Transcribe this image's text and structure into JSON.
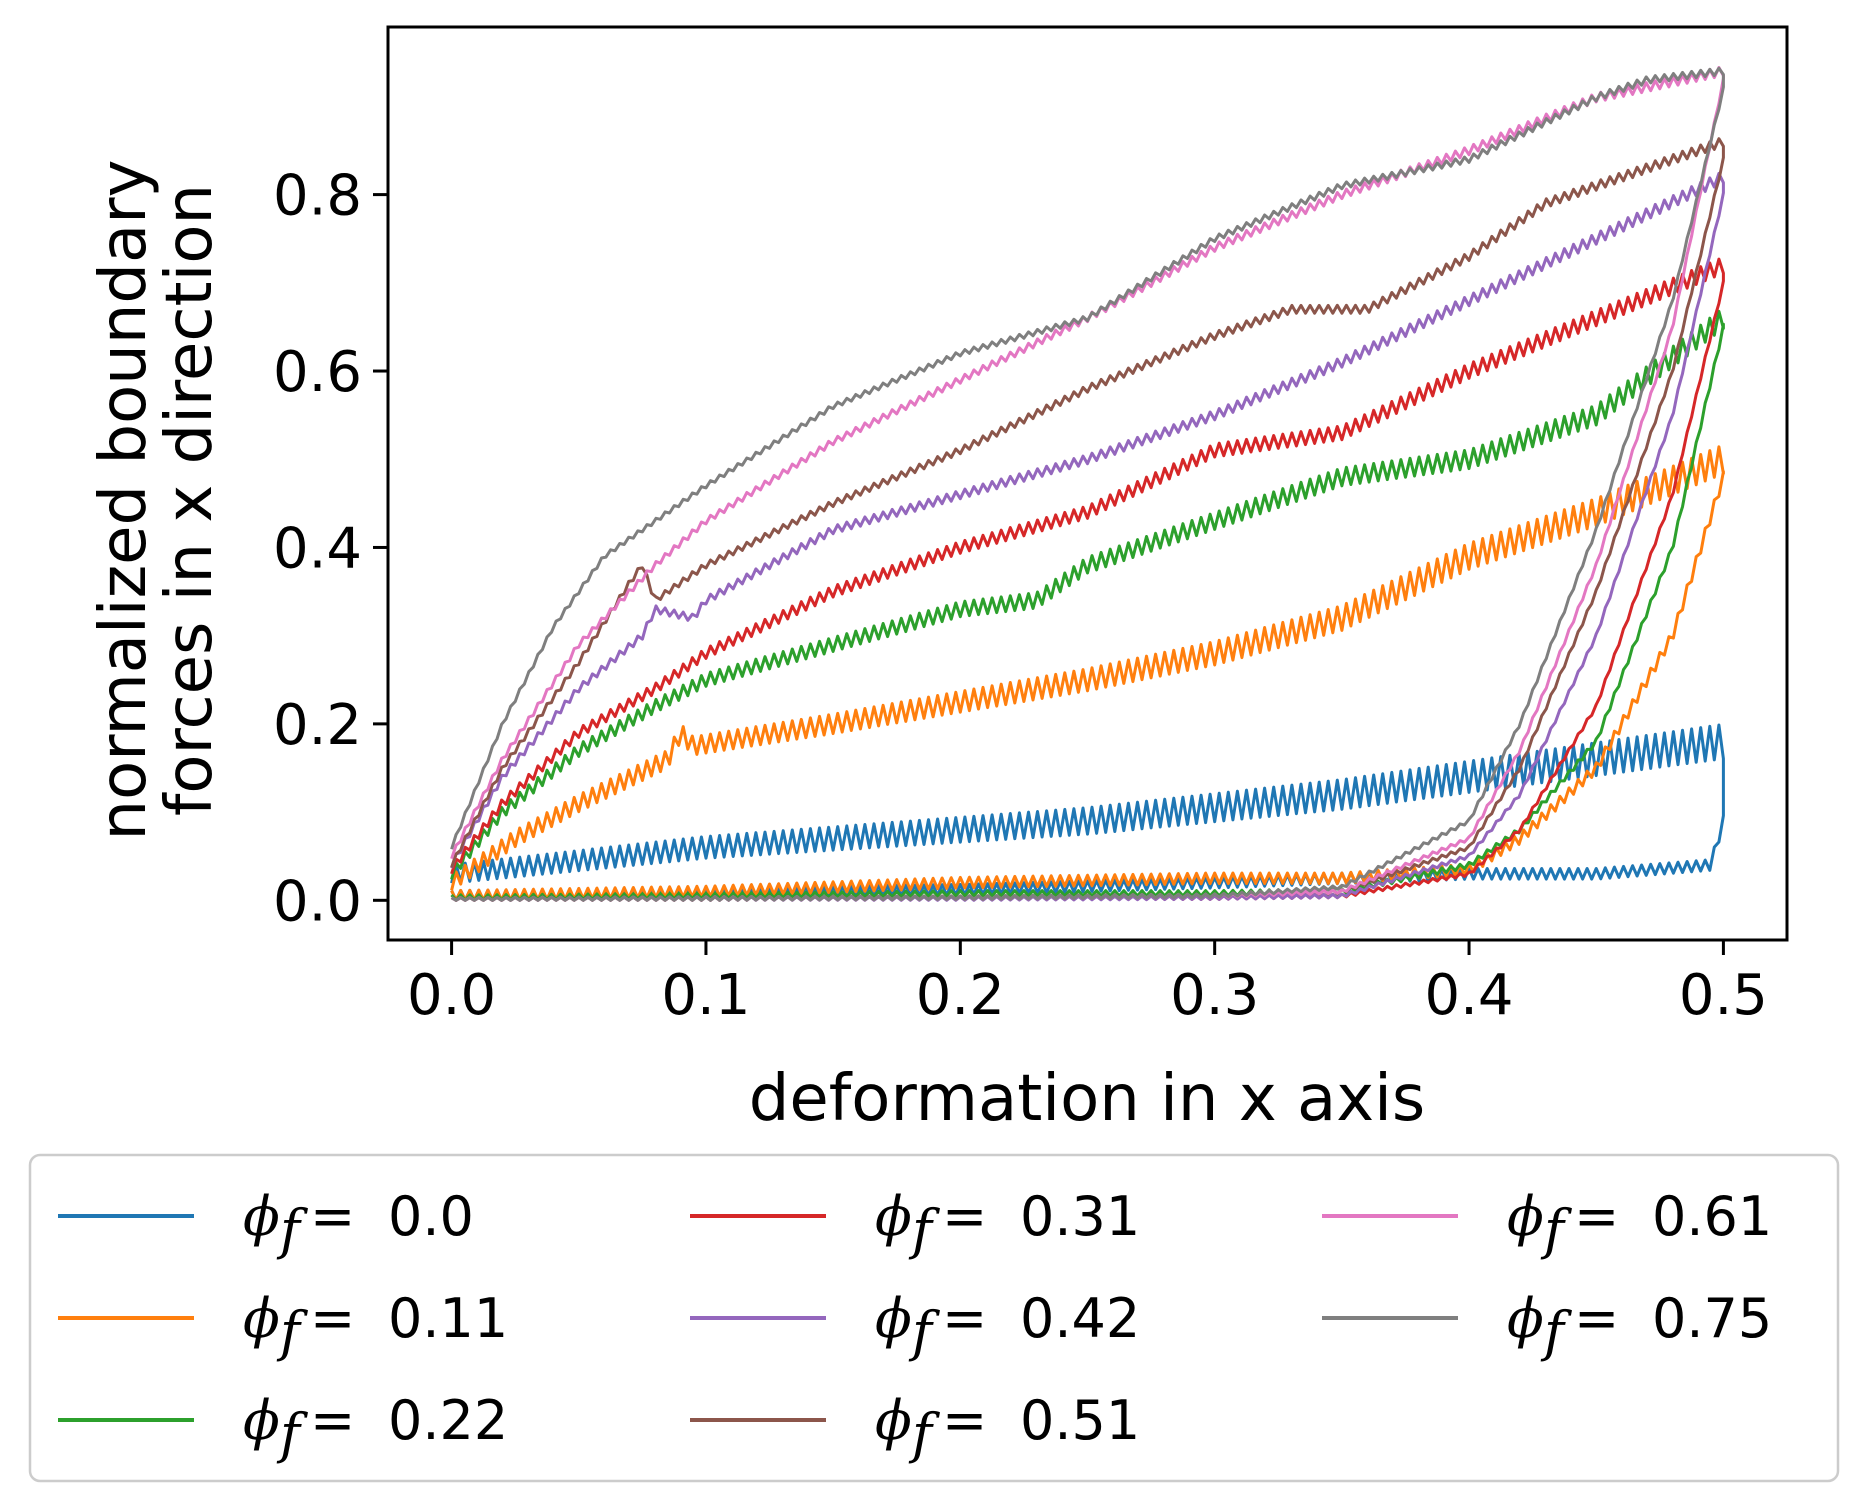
{
  "chart_data": {
    "type": "line",
    "title": "",
    "xlabel": "deformation in x axis",
    "ylabel_lines": [
      "normalized boundary",
      "forces in x direction"
    ],
    "xlim": [
      -0.025,
      0.525
    ],
    "ylim": [
      -0.045,
      0.99
    ],
    "xticks": [
      0.0,
      0.1,
      0.2,
      0.3,
      0.4,
      0.5
    ],
    "xtick_labels": [
      "0.0",
      "0.1",
      "0.2",
      "0.3",
      "0.4",
      "0.5"
    ],
    "yticks": [
      0.0,
      0.2,
      0.4,
      0.6,
      0.8
    ],
    "ytick_labels": [
      "0.0",
      "0.2",
      "0.4",
      "0.6",
      "0.8"
    ],
    "grid": false,
    "legend": {
      "placement": "below",
      "columns": 3,
      "symbol": "ϕ",
      "subscript": "f",
      "equals": "="
    },
    "series": [
      {
        "name": "0.0",
        "color": "#1f77b4",
        "loading": [
          [
            0,
            0.03
          ],
          [
            0.05,
            0.045
          ],
          [
            0.1,
            0.06
          ],
          [
            0.15,
            0.07
          ],
          [
            0.2,
            0.08
          ],
          [
            0.25,
            0.09
          ],
          [
            0.3,
            0.105
          ],
          [
            0.35,
            0.12
          ],
          [
            0.4,
            0.14
          ],
          [
            0.45,
            0.16
          ],
          [
            0.5,
            0.18
          ]
        ],
        "unloading": [
          [
            0.5,
            0.09
          ],
          [
            0.495,
            0.04
          ],
          [
            0.45,
            0.03
          ],
          [
            0.4,
            0.03
          ],
          [
            0.35,
            0.025
          ],
          [
            0.3,
            0.02
          ],
          [
            0.2,
            0.012
          ],
          [
            0.1,
            0.008
          ],
          [
            0,
            0.005
          ]
        ],
        "amp_load": 0.03,
        "amp_unload": 0.012
      },
      {
        "name": "0.11",
        "color": "#ff7f0e",
        "loading": [
          [
            0,
            0.02
          ],
          [
            0.025,
            0.07
          ],
          [
            0.05,
            0.11
          ],
          [
            0.085,
            0.16
          ],
          [
            0.09,
            0.19
          ],
          [
            0.095,
            0.175
          ],
          [
            0.15,
            0.2
          ],
          [
            0.2,
            0.225
          ],
          [
            0.25,
            0.25
          ],
          [
            0.3,
            0.28
          ],
          [
            0.35,
            0.32
          ],
          [
            0.4,
            0.39
          ],
          [
            0.45,
            0.44
          ],
          [
            0.5,
            0.5
          ]
        ],
        "unloading": [
          [
            0.5,
            0.48
          ],
          [
            0.48,
            0.3
          ],
          [
            0.45,
            0.15
          ],
          [
            0.42,
            0.07
          ],
          [
            0.4,
            0.035
          ],
          [
            0.35,
            0.025
          ],
          [
            0.3,
            0.025
          ],
          [
            0.2,
            0.02
          ],
          [
            0.1,
            0.01
          ],
          [
            0,
            0.005
          ]
        ],
        "amp_load": 0.025,
        "amp_unload": 0.012
      },
      {
        "name": "0.22",
        "color": "#2ca02c",
        "loading": [
          [
            0,
            0.03
          ],
          [
            0.02,
            0.1
          ],
          [
            0.05,
            0.17
          ],
          [
            0.08,
            0.22
          ],
          [
            0.1,
            0.25
          ],
          [
            0.15,
            0.29
          ],
          [
            0.2,
            0.33
          ],
          [
            0.23,
            0.34
          ],
          [
            0.25,
            0.38
          ],
          [
            0.3,
            0.43
          ],
          [
            0.35,
            0.48
          ],
          [
            0.4,
            0.5
          ],
          [
            0.45,
            0.55
          ],
          [
            0.5,
            0.66
          ]
        ],
        "unloading": [
          [
            0.5,
            0.65
          ],
          [
            0.48,
            0.4
          ],
          [
            0.45,
            0.18
          ],
          [
            0.42,
            0.08
          ],
          [
            0.4,
            0.04
          ],
          [
            0.35,
            0.01
          ],
          [
            0.3,
            0.008
          ],
          [
            0.2,
            0.008
          ],
          [
            0.1,
            0.005
          ],
          [
            0,
            0.003
          ]
        ],
        "amp_load": 0.018,
        "amp_unload": 0.006
      },
      {
        "name": "0.31",
        "color": "#d62728",
        "loading": [
          [
            0,
            0.035
          ],
          [
            0.02,
            0.11
          ],
          [
            0.05,
            0.19
          ],
          [
            0.08,
            0.24
          ],
          [
            0.1,
            0.28
          ],
          [
            0.15,
            0.35
          ],
          [
            0.2,
            0.4
          ],
          [
            0.25,
            0.44
          ],
          [
            0.3,
            0.51
          ],
          [
            0.35,
            0.53
          ],
          [
            0.4,
            0.6
          ],
          [
            0.45,
            0.66
          ],
          [
            0.5,
            0.72
          ]
        ],
        "unloading": [
          [
            0.5,
            0.7
          ],
          [
            0.48,
            0.46
          ],
          [
            0.45,
            0.22
          ],
          [
            0.42,
            0.08
          ],
          [
            0.4,
            0.03
          ],
          [
            0.35,
            0.005
          ],
          [
            0.3,
            0.003
          ],
          [
            0.2,
            0.003
          ],
          [
            0.1,
            0.002
          ],
          [
            0,
            0.001
          ]
        ],
        "amp_load": 0.014,
        "amp_unload": 0.004
      },
      {
        "name": "0.42",
        "color": "#9467bd",
        "loading": [
          [
            0,
            0.04
          ],
          [
            0.02,
            0.14
          ],
          [
            0.05,
            0.24
          ],
          [
            0.075,
            0.3
          ],
          [
            0.08,
            0.33
          ],
          [
            0.095,
            0.32
          ],
          [
            0.1,
            0.34
          ],
          [
            0.15,
            0.42
          ],
          [
            0.2,
            0.46
          ],
          [
            0.25,
            0.5
          ],
          [
            0.3,
            0.55
          ],
          [
            0.35,
            0.61
          ],
          [
            0.4,
            0.68
          ],
          [
            0.45,
            0.75
          ],
          [
            0.5,
            0.82
          ]
        ],
        "unloading": [
          [
            0.5,
            0.8
          ],
          [
            0.48,
            0.55
          ],
          [
            0.45,
            0.3
          ],
          [
            0.42,
            0.12
          ],
          [
            0.4,
            0.05
          ],
          [
            0.35,
            0.005
          ],
          [
            0.3,
            0.003
          ],
          [
            0.2,
            0.002
          ],
          [
            0.1,
            0.002
          ],
          [
            0,
            0.001
          ]
        ],
        "amp_load": 0.01,
        "amp_unload": 0.004
      },
      {
        "name": "0.51",
        "color": "#8c564b",
        "loading": [
          [
            0,
            0.04
          ],
          [
            0.02,
            0.15
          ],
          [
            0.05,
            0.27
          ],
          [
            0.07,
            0.36
          ],
          [
            0.075,
            0.38
          ],
          [
            0.08,
            0.34
          ],
          [
            0.1,
            0.38
          ],
          [
            0.15,
            0.45
          ],
          [
            0.2,
            0.51
          ],
          [
            0.25,
            0.58
          ],
          [
            0.3,
            0.64
          ],
          [
            0.33,
            0.67
          ],
          [
            0.36,
            0.67
          ],
          [
            0.4,
            0.73
          ],
          [
            0.43,
            0.79
          ],
          [
            0.45,
            0.81
          ],
          [
            0.5,
            0.86
          ]
        ],
        "unloading": [
          [
            0.5,
            0.84
          ],
          [
            0.48,
            0.6
          ],
          [
            0.45,
            0.35
          ],
          [
            0.42,
            0.15
          ],
          [
            0.4,
            0.06
          ],
          [
            0.35,
            0.01
          ],
          [
            0.3,
            0.005
          ],
          [
            0.2,
            0.003
          ],
          [
            0.1,
            0.002
          ],
          [
            0,
            0.001
          ]
        ],
        "amp_load": 0.008,
        "amp_unload": 0.004
      },
      {
        "name": "0.61",
        "color": "#e377c2",
        "loading": [
          [
            0,
            0.05
          ],
          [
            0.02,
            0.16
          ],
          [
            0.05,
            0.29
          ],
          [
            0.08,
            0.38
          ],
          [
            0.1,
            0.43
          ],
          [
            0.15,
            0.52
          ],
          [
            0.2,
            0.59
          ],
          [
            0.25,
            0.66
          ],
          [
            0.3,
            0.74
          ],
          [
            0.35,
            0.8
          ],
          [
            0.4,
            0.85
          ],
          [
            0.45,
            0.91
          ],
          [
            0.5,
            0.94
          ]
        ],
        "unloading": [
          [
            0.5,
            0.93
          ],
          [
            0.48,
            0.65
          ],
          [
            0.45,
            0.38
          ],
          [
            0.42,
            0.17
          ],
          [
            0.4,
            0.07
          ],
          [
            0.35,
            0.01
          ],
          [
            0.3,
            0.005
          ],
          [
            0.2,
            0.003
          ],
          [
            0.1,
            0.002
          ],
          [
            0,
            0.001
          ]
        ],
        "amp_load": 0.008,
        "amp_unload": 0.004
      },
      {
        "name": "0.75",
        "color": "#7f7f7f",
        "loading": [
          [
            0,
            0.06
          ],
          [
            0.02,
            0.2
          ],
          [
            0.04,
            0.31
          ],
          [
            0.06,
            0.39
          ],
          [
            0.1,
            0.47
          ],
          [
            0.15,
            0.56
          ],
          [
            0.2,
            0.62
          ],
          [
            0.25,
            0.66
          ],
          [
            0.3,
            0.75
          ],
          [
            0.35,
            0.81
          ],
          [
            0.4,
            0.84
          ],
          [
            0.45,
            0.91
          ],
          [
            0.47,
            0.93
          ],
          [
            0.5,
            0.94
          ]
        ],
        "unloading": [
          [
            0.5,
            0.92
          ],
          [
            0.48,
            0.68
          ],
          [
            0.45,
            0.42
          ],
          [
            0.42,
            0.2
          ],
          [
            0.4,
            0.09
          ],
          [
            0.35,
            0.015
          ],
          [
            0.3,
            0.005
          ],
          [
            0.2,
            0.003
          ],
          [
            0.1,
            0.002
          ],
          [
            0,
            0.001
          ]
        ],
        "amp_load": 0.006,
        "amp_unload": 0.004
      }
    ]
  }
}
